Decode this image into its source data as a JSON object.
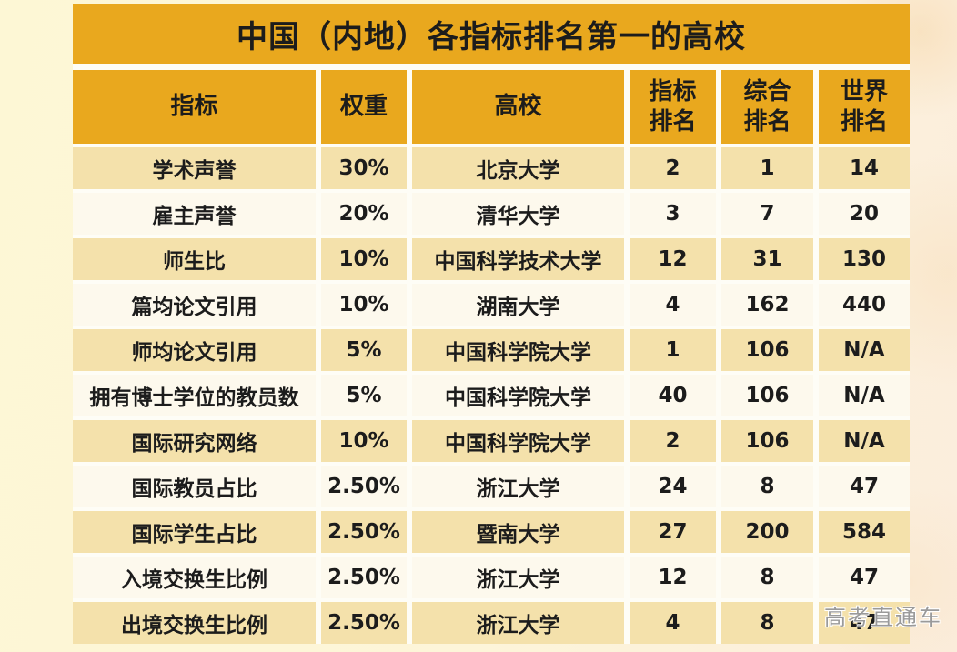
{
  "title": "中国（内地）各指标排名第一的高校",
  "watermark": "高考直通车",
  "colors": {
    "header_bg": "#e9a81e",
    "row_odd_bg": "#f4e1ab",
    "row_even_bg": "#fdf9ed",
    "text": "#1c1c1c",
    "page_bg_left": "#fdf7d5",
    "page_bg_right": "#fbeddd",
    "gap": "#fefdf6",
    "watermark_color": "#9a9a9a"
  },
  "chart_data": {
    "type": "table",
    "title": "中国（内地）各指标排名第一的高校",
    "columns": [
      "指标",
      "权重",
      "高校",
      "指标排名",
      "综合排名",
      "世界排名"
    ],
    "header_labels": [
      "指标",
      "权重",
      "高校",
      "指标\n排名",
      "综合\n排名",
      "世界\n排名"
    ],
    "rows": [
      [
        "学术声誉",
        "30%",
        "北京大学",
        "2",
        "1",
        "14"
      ],
      [
        "雇主声誉",
        "20%",
        "清华大学",
        "3",
        "7",
        "20"
      ],
      [
        "师生比",
        "10%",
        "中国科学技术大学",
        "12",
        "31",
        "130"
      ],
      [
        "篇均论文引用",
        "10%",
        "湖南大学",
        "4",
        "162",
        "440"
      ],
      [
        "师均论文引用",
        "5%",
        "中国科学院大学",
        "1",
        "106",
        "N/A"
      ],
      [
        "拥有博士学位的教员数",
        "5%",
        "中国科学院大学",
        "40",
        "106",
        "N/A"
      ],
      [
        "国际研究网络",
        "10%",
        "中国科学院大学",
        "2",
        "106",
        "N/A"
      ],
      [
        "国际教员占比",
        "2.50%",
        "浙江大学",
        "24",
        "8",
        "47"
      ],
      [
        "国际学生占比",
        "2.50%",
        "暨南大学",
        "27",
        "200",
        "584"
      ],
      [
        "入境交换生比例",
        "2.50%",
        "浙江大学",
        "12",
        "8",
        "47"
      ],
      [
        "出境交换生比例",
        "2.50%",
        "浙江大学",
        "4",
        "8",
        "47"
      ]
    ]
  }
}
